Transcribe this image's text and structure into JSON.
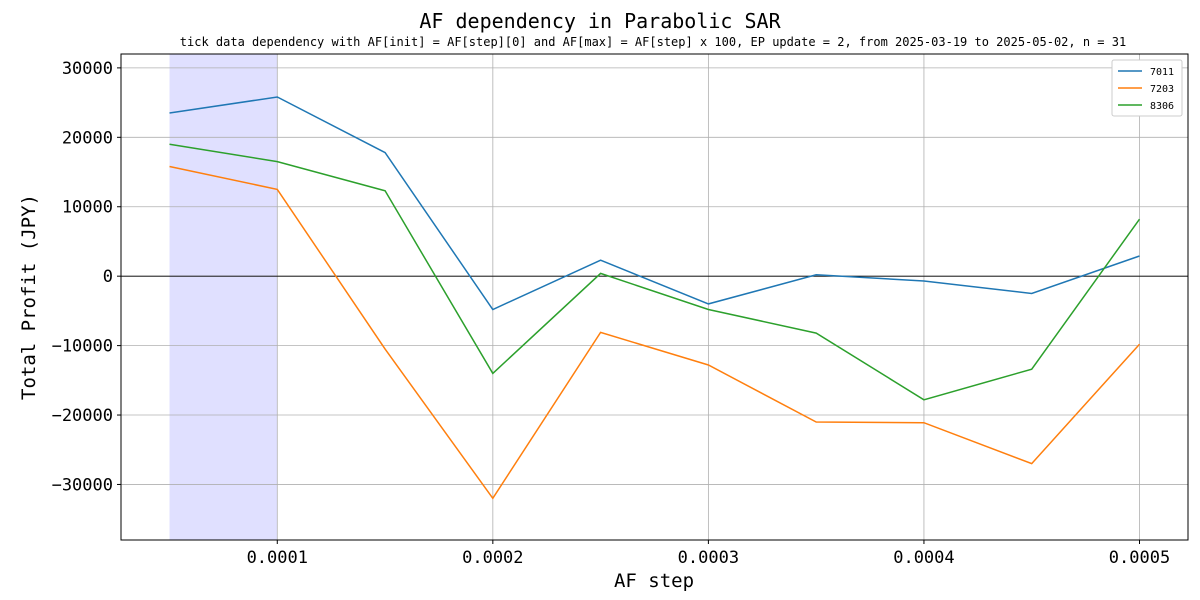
{
  "chart_data": {
    "type": "line",
    "title": "AF dependency in Parabolic SAR",
    "subtitle": "tick data dependency with AF[init] = AF[step][0] and AF[max] = AF[step] x 100, EP update = 2, from 2025-03-19 to 2025-05-02, n = 31",
    "xlabel": "AF step",
    "ylabel": "Total Profit (JPY)",
    "x": [
      5e-05,
      0.0001,
      0.00015,
      0.0002,
      0.00025,
      0.0003,
      0.00035,
      0.0004,
      0.00045,
      0.0005
    ],
    "x_ticks": [
      0.0001,
      0.0002,
      0.0003,
      0.0004,
      0.0005
    ],
    "x_tick_labels": [
      "0.0001",
      "0.0002",
      "0.0003",
      "0.0004",
      "0.0005"
    ],
    "y_ticks": [
      30000,
      20000,
      10000,
      0,
      -10000,
      -20000,
      -30000
    ],
    "y_tick_labels": [
      "30000",
      "20000",
      "10000",
      "0",
      "−10000",
      "−20000",
      "−30000"
    ],
    "xlim": [
      2.75e-05,
      0.0005225
    ],
    "ylim": [
      -38000,
      32000
    ],
    "grid": true,
    "legend_position": "top-right",
    "highlight_span": [
      5e-05,
      0.0001
    ],
    "highlight_color": "#e0e0ff",
    "zero_line": true,
    "series": [
      {
        "name": "7011",
        "color": "#1f77b4",
        "values": [
          23500,
          25800,
          17800,
          -4800,
          2300,
          -4000,
          200,
          -700,
          -2500,
          2900
        ]
      },
      {
        "name": "7203",
        "color": "#ff7f0e",
        "values": [
          15800,
          12500,
          -10500,
          -32000,
          -8100,
          -12800,
          -21000,
          -21100,
          -27000,
          -9800
        ]
      },
      {
        "name": "8306",
        "color": "#2ca02c",
        "values": [
          19000,
          16500,
          12300,
          -14000,
          400,
          -4800,
          -8200,
          -17800,
          -13400,
          8200
        ]
      }
    ]
  }
}
